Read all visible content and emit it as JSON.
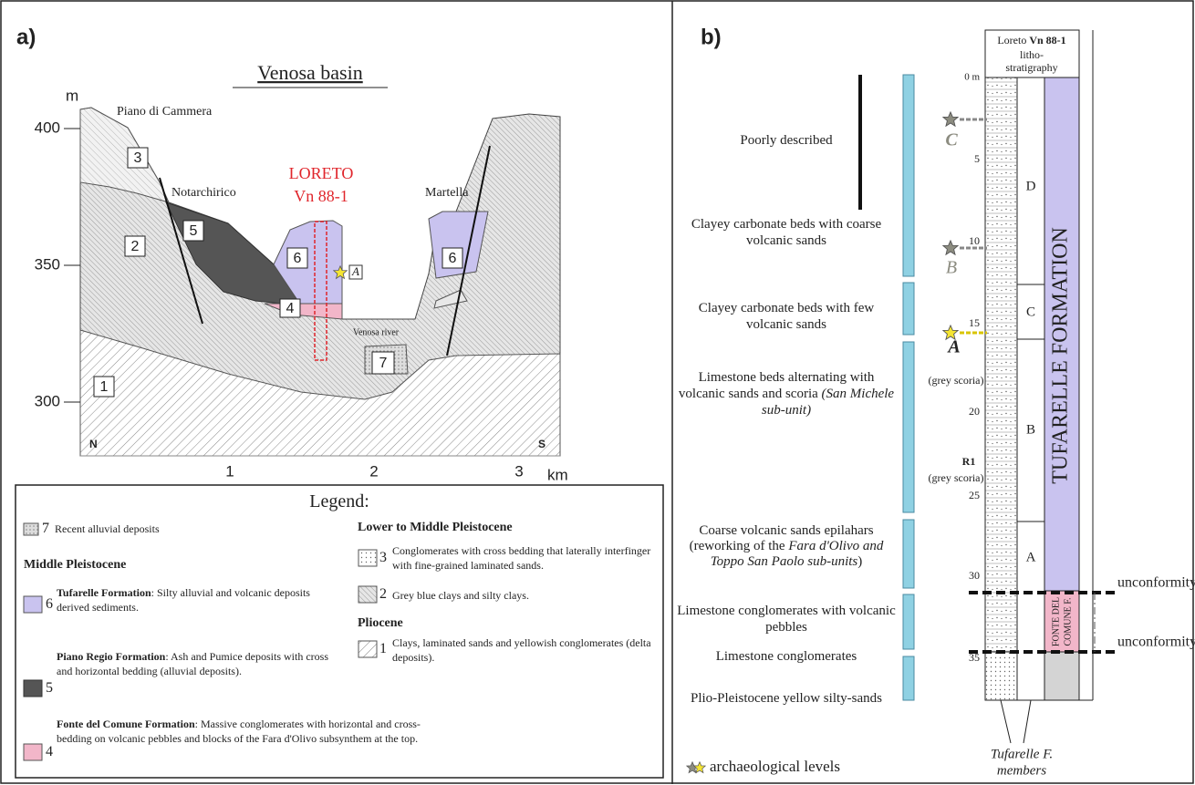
{
  "panel_a": {
    "label": "a)",
    "title": "Venosa basin",
    "y_axis": {
      "unit": "m",
      "ticks": [
        400,
        350,
        300
      ]
    },
    "x_axis": {
      "unit": "km",
      "ticks": [
        1,
        2,
        3
      ]
    },
    "places": [
      "Piano di Cammera",
      "Notarchirico",
      "Martella"
    ],
    "borehole": [
      "LORETO",
      "Vn 88-1"
    ],
    "archaeological_level": "A",
    "river": "Venosa river",
    "orientation": [
      "N",
      "S"
    ],
    "units": [
      "1",
      "2",
      "3",
      "4",
      "5",
      "6",
      "7"
    ],
    "legend": {
      "title": "Legend:",
      "headings": [
        "Middle Pleistocene",
        "Lower to Middle Pleistocene",
        "Pliocene"
      ],
      "items": [
        {
          "unit": "7",
          "text": "Recent alluvial deposits"
        },
        {
          "unit": "6",
          "name": "Tufarelle Formation",
          "text": ": Silty alluvial and volcanic deposits derived sediments."
        },
        {
          "unit": "5",
          "name": "Piano Regio Formation",
          "text": ": Ash and Pumice deposits with cross and horizontal bedding (alluvial deposits)."
        },
        {
          "unit": "4",
          "name": "Fonte del Comune Formation",
          "text": ": Massive conglomerates with horizontal and cross-bedding on volcanic pebbles and blocks of the Fara d'Olivo subsynthem at the top."
        },
        {
          "unit": "3",
          "text": "Conglomerates with cross bedding that laterally interfinger with fine-grained laminated sands."
        },
        {
          "unit": "2",
          "text": "Grey blue clays and silty clays."
        },
        {
          "unit": "1",
          "text": "Clays, laminated sands and yellowish conglomerates (delta deposits)."
        }
      ]
    }
  },
  "panel_b": {
    "label": "b)",
    "column_header": {
      "prefix": "Loreto",
      "well": "Vn 88-1",
      "suffix": "litho-stratigraphy"
    },
    "depth_ticks": [
      {
        "value": 0,
        "label": "0 m"
      },
      5,
      10,
      15,
      20,
      25,
      30,
      35
    ],
    "descriptions": [
      {
        "text": "Poorly described"
      },
      {
        "text": "Clayey carbonate beds with coarse volcanic sands"
      },
      {
        "text": "Clayey carbonate beds with few volcanic sands"
      },
      {
        "text": "Limestone beds alternating with volcanic sands and scoria",
        "italic": "(San Michele sub-unit)"
      },
      {
        "text": "Coarse volcanic sands epilahars (reworking of the",
        "italic": "Fara d'Olivo and Toppo San Paolo sub-units",
        "end": ")"
      },
      {
        "text": "Limestone conglomerates with volcanic pebbles"
      },
      {
        "text": "Limestone conglomerates"
      },
      {
        "text": "Plio-Pleistocene yellow silty-sands"
      }
    ],
    "members": [
      "D",
      "C",
      "B",
      "A"
    ],
    "formations": {
      "tufarelle": "TUFARELLE FORMATION",
      "fonte": [
        "FONTE DEL",
        "COMUNE F."
      ]
    },
    "unconformities": [
      "unconformity",
      "unconformity"
    ],
    "stars": [
      "C",
      "B",
      "A"
    ],
    "notes": [
      "(grey scoria)",
      "R1",
      "(grey scoria)"
    ],
    "footer": [
      "Tufarelle F.",
      "members"
    ],
    "key": "archaeological levels"
  }
}
